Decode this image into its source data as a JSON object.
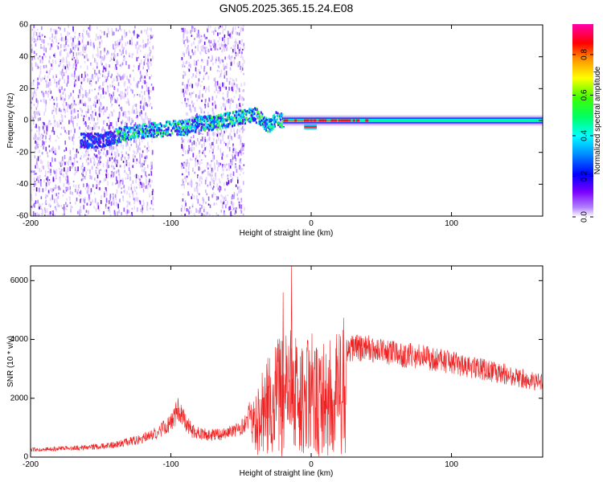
{
  "figure": {
    "title": "GN05.2025.365.15.24.E08"
  },
  "chart_data": [
    {
      "type": "heatmap",
      "name": "spectrogram",
      "xlabel": "Height of straight line (km)",
      "ylabel": "Frequency (Hz)",
      "xlim": [
        -200,
        165
      ],
      "ylim": [
        -60,
        60
      ],
      "xticks": [
        -200,
        -100,
        0,
        100
      ],
      "yticks": [
        -60,
        -40,
        -20,
        0,
        20,
        40,
        60
      ],
      "grid": false,
      "colorbar": {
        "label": "Normalized spectral amplitude",
        "range": [
          0,
          0.95
        ],
        "ticks": [
          "0.0",
          "0.2",
          "0.4",
          "0.6",
          "0.8"
        ],
        "colormap": [
          "#ffffff",
          "#7a00ff",
          "#0000ff",
          "#00ffff",
          "#00ff00",
          "#ffff00",
          "#ff0000",
          "#ff00aa"
        ]
      },
      "features": {
        "noise_bands_km": [
          [
            -200,
            -113
          ],
          [
            -93,
            -48
          ]
        ],
        "wandering_trace": {
          "x": [
            -165,
            -150,
            -140,
            -130,
            -120,
            -110,
            -100,
            -90,
            -80,
            -70,
            -60,
            -50,
            -40,
            -30,
            -25,
            -20
          ],
          "y": [
            -12,
            -12,
            -9,
            -7,
            -6,
            -5,
            -4,
            -4,
            -1,
            -1,
            1,
            3,
            4,
            -3,
            2,
            0
          ]
        },
        "stable_trace": {
          "x_start": -20,
          "x_end": 165,
          "freq_hz": 0,
          "dip_km": [
            -5,
            4
          ],
          "dip_freq_hz": -4
        }
      }
    },
    {
      "type": "line",
      "name": "snr",
      "xlabel": "Height of straight line (km)",
      "ylabel": "SNR (10 * v/v)",
      "xlim": [
        -200,
        165
      ],
      "ylim": [
        0,
        6500
      ],
      "xticks": [
        -200,
        -100,
        0,
        100
      ],
      "yticks": [
        0,
        2000,
        4000,
        6000
      ],
      "color": "#ee2222",
      "grid": false,
      "series": [
        {
          "x": [
            -200,
            -180,
            -160,
            -140,
            -120,
            -110,
            -100,
            -95,
            -90,
            -85,
            -80,
            -70,
            -60,
            -50,
            -40,
            -35,
            -30,
            -25,
            -20,
            -15,
            -10,
            -5,
            0,
            5,
            10,
            20,
            25,
            30,
            40,
            60,
            80,
            100,
            120,
            140,
            165
          ],
          "y": [
            250,
            280,
            330,
            420,
            620,
            850,
            1150,
            1600,
            1250,
            900,
            800,
            750,
            800,
            1000,
            1500,
            2000,
            2400,
            2700,
            3000,
            3200,
            2900,
            2800,
            2900,
            3000,
            2900,
            3000,
            3600,
            3700,
            3700,
            3500,
            3400,
            3200,
            3000,
            2800,
            2500
          ]
        }
      ],
      "annotations": {
        "spike": {
          "x": -14,
          "y": 6500
        },
        "spike2": {
          "x": -20,
          "y": 5600
        }
      }
    }
  ]
}
